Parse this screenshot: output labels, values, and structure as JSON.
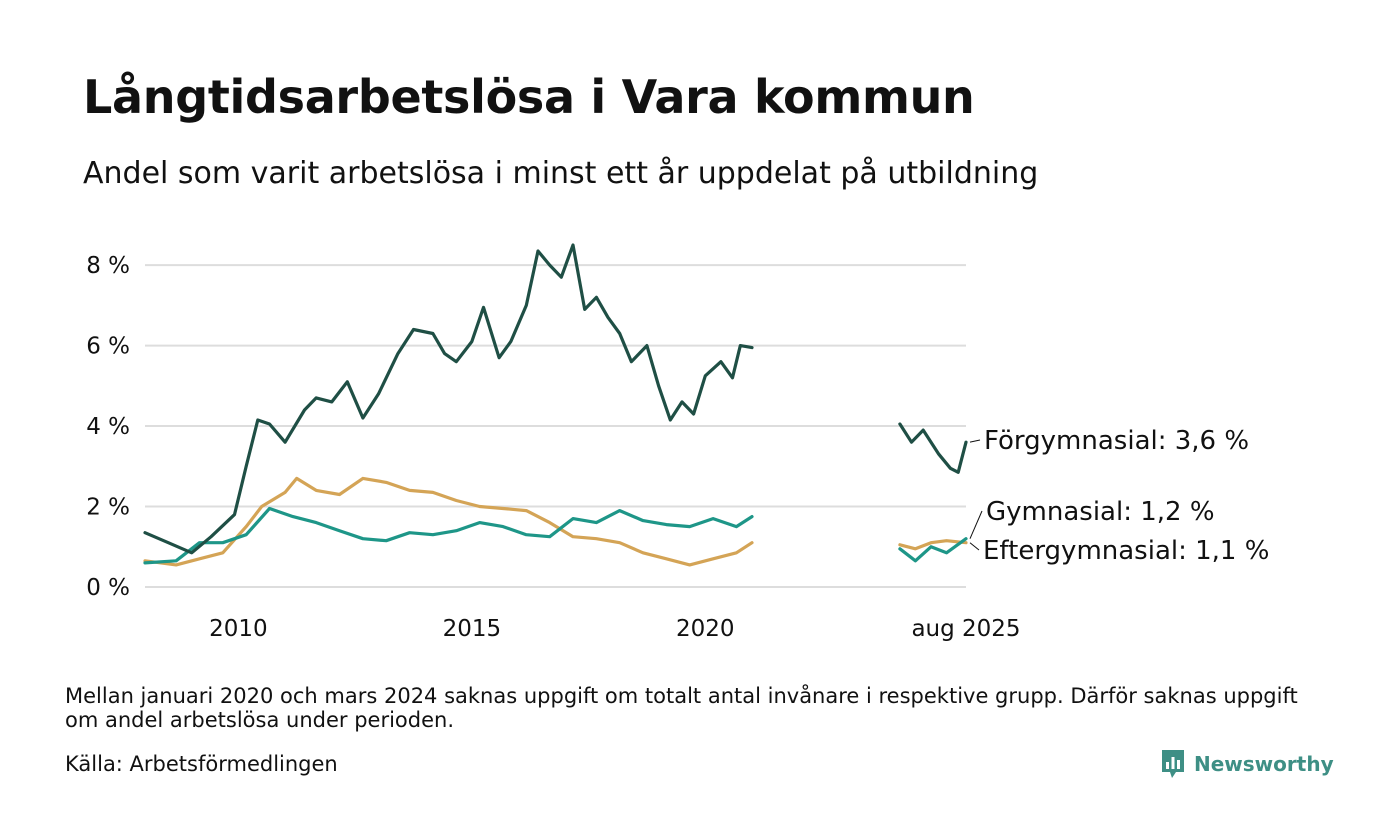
{
  "title": "Långtidsarbetslösa i Vara kommun",
  "subtitle": "Andel som varit arbetslösa i minst ett år uppdelat på utbildning",
  "note": "Mellan januari 2020 och mars 2024 saknas uppgift om totalt antal invånare i respektive grupp. Därför saknas uppgift om andel arbetslösa under perioden.",
  "source": "Källa: Arbetsförmedlingen",
  "brand": {
    "name": "Newsworthy",
    "icon": "newsworthy-logo-icon",
    "color": "#3e8f85"
  },
  "colors": {
    "grid": "#dddddd"
  },
  "chart_data": {
    "type": "line",
    "ylim": [
      0,
      8.5
    ],
    "xlim": [
      "2008-01",
      "2025-08"
    ],
    "y_ticks": [
      {
        "value": 0,
        "label": "0 %"
      },
      {
        "value": 2,
        "label": "2 %"
      },
      {
        "value": 4,
        "label": "4 %"
      },
      {
        "value": 6,
        "label": "6 %"
      },
      {
        "value": 8,
        "label": "8 %"
      }
    ],
    "x_ticks": [
      {
        "date": "2010-01",
        "label": "2010"
      },
      {
        "date": "2015-01",
        "label": "2015"
      },
      {
        "date": "2020-01",
        "label": "2020"
      },
      {
        "date": "2025-08",
        "label": "aug 2025"
      }
    ],
    "grid": true,
    "legend": "end-labels",
    "gap": [
      "2021-01",
      "2024-03"
    ],
    "series": [
      {
        "name": "Förgymnasial",
        "end_label": "Förgymnasial: 3,6 %",
        "color": "#1f4f45",
        "points": [
          [
            "2008-01",
            1.35
          ],
          [
            "2008-07",
            1.1
          ],
          [
            "2009-01",
            0.85
          ],
          [
            "2009-06",
            1.25
          ],
          [
            "2009-12",
            1.8
          ],
          [
            "2010-03",
            3.0
          ],
          [
            "2010-06",
            4.15
          ],
          [
            "2010-09",
            4.05
          ],
          [
            "2011-01",
            3.6
          ],
          [
            "2011-06",
            4.4
          ],
          [
            "2011-09",
            4.7
          ],
          [
            "2012-01",
            4.6
          ],
          [
            "2012-05",
            5.1
          ],
          [
            "2012-09",
            4.2
          ],
          [
            "2013-01",
            4.8
          ],
          [
            "2013-06",
            5.8
          ],
          [
            "2013-10",
            6.4
          ],
          [
            "2014-03",
            6.3
          ],
          [
            "2014-06",
            5.8
          ],
          [
            "2014-09",
            5.6
          ],
          [
            "2015-01",
            6.1
          ],
          [
            "2015-04",
            6.95
          ],
          [
            "2015-08",
            5.7
          ],
          [
            "2015-11",
            6.1
          ],
          [
            "2016-03",
            7.0
          ],
          [
            "2016-06",
            8.35
          ],
          [
            "2016-09",
            8.0
          ],
          [
            "2016-12",
            7.7
          ],
          [
            "2017-03",
            8.5
          ],
          [
            "2017-06",
            6.9
          ],
          [
            "2017-09",
            7.2
          ],
          [
            "2017-12",
            6.7
          ],
          [
            "2018-03",
            6.3
          ],
          [
            "2018-06",
            5.6
          ],
          [
            "2018-10",
            6.0
          ],
          [
            "2019-01",
            5.0
          ],
          [
            "2019-04",
            4.15
          ],
          [
            "2019-07",
            4.6
          ],
          [
            "2019-10",
            4.3
          ],
          [
            "2020-01",
            5.25
          ],
          [
            "2020-05",
            5.6
          ],
          [
            "2020-08",
            5.2
          ],
          [
            "2020-10",
            6.0
          ],
          [
            "2021-01",
            5.95
          ],
          [
            "2024-03",
            4.05
          ],
          [
            "2024-06",
            3.6
          ],
          [
            "2024-09",
            3.9
          ],
          [
            "2025-01",
            3.3
          ],
          [
            "2025-04",
            2.95
          ],
          [
            "2025-06",
            2.85
          ],
          [
            "2025-08",
            3.6
          ]
        ]
      },
      {
        "name": "Gymnasial",
        "end_label": "Gymnasial: 1,2 %",
        "color": "#1e9688",
        "points": [
          [
            "2008-01",
            0.6
          ],
          [
            "2008-09",
            0.65
          ],
          [
            "2009-03",
            1.1
          ],
          [
            "2009-09",
            1.1
          ],
          [
            "2010-03",
            1.3
          ],
          [
            "2010-09",
            1.95
          ],
          [
            "2011-03",
            1.75
          ],
          [
            "2011-09",
            1.6
          ],
          [
            "2012-03",
            1.4
          ],
          [
            "2012-09",
            1.2
          ],
          [
            "2013-03",
            1.15
          ],
          [
            "2013-09",
            1.35
          ],
          [
            "2014-03",
            1.3
          ],
          [
            "2014-09",
            1.4
          ],
          [
            "2015-03",
            1.6
          ],
          [
            "2015-09",
            1.5
          ],
          [
            "2016-03",
            1.3
          ],
          [
            "2016-09",
            1.25
          ],
          [
            "2017-03",
            1.7
          ],
          [
            "2017-09",
            1.6
          ],
          [
            "2018-03",
            1.9
          ],
          [
            "2018-09",
            1.65
          ],
          [
            "2019-03",
            1.55
          ],
          [
            "2019-09",
            1.5
          ],
          [
            "2020-03",
            1.7
          ],
          [
            "2020-09",
            1.5
          ],
          [
            "2021-01",
            1.75
          ],
          [
            "2024-03",
            0.95
          ],
          [
            "2024-07",
            0.65
          ],
          [
            "2024-11",
            1.0
          ],
          [
            "2025-03",
            0.85
          ],
          [
            "2025-08",
            1.2
          ]
        ]
      },
      {
        "name": "Eftergymnasial",
        "end_label": "Eftergymnasial: 1,1 %",
        "color": "#d4a456",
        "points": [
          [
            "2008-01",
            0.65
          ],
          [
            "2008-09",
            0.55
          ],
          [
            "2009-03",
            0.7
          ],
          [
            "2009-09",
            0.85
          ],
          [
            "2010-03",
            1.5
          ],
          [
            "2010-07",
            2.0
          ],
          [
            "2011-01",
            2.35
          ],
          [
            "2011-04",
            2.7
          ],
          [
            "2011-09",
            2.4
          ],
          [
            "2012-03",
            2.3
          ],
          [
            "2012-09",
            2.7
          ],
          [
            "2013-03",
            2.6
          ],
          [
            "2013-09",
            2.4
          ],
          [
            "2014-03",
            2.35
          ],
          [
            "2014-09",
            2.15
          ],
          [
            "2015-03",
            2.0
          ],
          [
            "2015-09",
            1.95
          ],
          [
            "2016-03",
            1.9
          ],
          [
            "2016-09",
            1.6
          ],
          [
            "2017-03",
            1.25
          ],
          [
            "2017-09",
            1.2
          ],
          [
            "2018-03",
            1.1
          ],
          [
            "2018-09",
            0.85
          ],
          [
            "2019-03",
            0.7
          ],
          [
            "2019-09",
            0.55
          ],
          [
            "2020-03",
            0.7
          ],
          [
            "2020-09",
            0.85
          ],
          [
            "2021-01",
            1.1
          ],
          [
            "2024-03",
            1.05
          ],
          [
            "2024-07",
            0.95
          ],
          [
            "2024-11",
            1.1
          ],
          [
            "2025-03",
            1.15
          ],
          [
            "2025-08",
            1.1
          ]
        ]
      }
    ]
  }
}
